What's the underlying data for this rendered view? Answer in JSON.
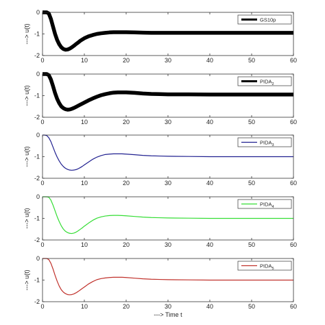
{
  "chart_data": [
    {
      "type": "line",
      "ylabel": "---> u(t)",
      "xlabel": "",
      "xlim": [
        0,
        60
      ],
      "ylim": [
        -2,
        0
      ],
      "xticks": [
        0,
        10,
        20,
        30,
        40,
        50,
        60
      ],
      "yticks": [
        0,
        -1,
        -2
      ],
      "grid": false,
      "legend_position": "top-right",
      "series": [
        {
          "name": "GS10p",
          "name_sub": "",
          "color": "#000000",
          "noisy": true,
          "x": [
            0,
            0.5,
            1,
            1.5,
            2,
            2.5,
            3,
            3.5,
            4,
            4.5,
            5,
            5.5,
            6,
            6.5,
            7,
            7.5,
            8,
            8.5,
            9,
            9.5,
            10,
            11,
            12,
            13,
            14,
            15,
            16,
            17,
            18,
            19,
            20,
            22,
            24,
            26,
            28,
            30,
            35,
            40,
            45,
            50,
            55,
            60
          ],
          "y": [
            0,
            0,
            0,
            -0.05,
            -0.3,
            -0.65,
            -1.0,
            -1.28,
            -1.48,
            -1.62,
            -1.7,
            -1.73,
            -1.72,
            -1.68,
            -1.62,
            -1.55,
            -1.47,
            -1.4,
            -1.32,
            -1.26,
            -1.2,
            -1.11,
            -1.05,
            -1.0,
            -0.97,
            -0.95,
            -0.93,
            -0.92,
            -0.92,
            -0.92,
            -0.92,
            -0.93,
            -0.94,
            -0.95,
            -0.95,
            -0.95,
            -0.95,
            -0.95,
            -0.95,
            -0.95,
            -0.95,
            -0.95
          ]
        }
      ]
    },
    {
      "type": "line",
      "ylabel": "---> u(t)",
      "xlabel": "",
      "xlim": [
        0,
        60
      ],
      "ylim": [
        -2,
        0
      ],
      "xticks": [
        0,
        10,
        20,
        30,
        40,
        50,
        60
      ],
      "yticks": [
        0,
        -1,
        -2
      ],
      "grid": false,
      "legend_position": "top-right",
      "series": [
        {
          "name": "PIDA",
          "name_sub": "2",
          "color": "#000000",
          "noisy": true,
          "x": [
            0,
            0.5,
            1,
            1.5,
            2,
            2.5,
            3,
            3.5,
            4,
            4.5,
            5,
            5.5,
            6,
            6.5,
            7,
            7.5,
            8,
            8.5,
            9,
            9.5,
            10,
            11,
            12,
            13,
            14,
            15,
            16,
            17,
            18,
            19,
            20,
            22,
            24,
            26,
            28,
            30,
            35,
            40,
            45,
            50,
            55,
            60
          ],
          "y": [
            0,
            0,
            0,
            -0.05,
            -0.25,
            -0.55,
            -0.88,
            -1.15,
            -1.35,
            -1.5,
            -1.58,
            -1.63,
            -1.65,
            -1.64,
            -1.61,
            -1.57,
            -1.52,
            -1.47,
            -1.42,
            -1.37,
            -1.32,
            -1.22,
            -1.13,
            -1.05,
            -0.98,
            -0.93,
            -0.89,
            -0.86,
            -0.85,
            -0.85,
            -0.85,
            -0.87,
            -0.9,
            -0.92,
            -0.93,
            -0.94,
            -0.94,
            -0.95,
            -0.95,
            -0.95,
            -0.95,
            -0.95
          ]
        }
      ]
    },
    {
      "type": "line",
      "ylabel": "---> u(t)",
      "xlabel": "",
      "xlim": [
        0,
        60
      ],
      "ylim": [
        -2,
        0
      ],
      "xticks": [
        0,
        10,
        20,
        30,
        40,
        50,
        60
      ],
      "yticks": [
        0,
        -1,
        -2
      ],
      "grid": false,
      "legend_position": "top-right",
      "series": [
        {
          "name": "PIDA",
          "name_sub": "3",
          "color": "#1f1f8f",
          "noisy": false,
          "x": [
            0,
            0.5,
            1,
            1.5,
            2,
            2.5,
            3,
            3.5,
            4,
            4.5,
            5,
            5.5,
            6,
            6.5,
            7,
            7.5,
            8,
            8.5,
            9,
            9.5,
            10,
            11,
            12,
            13,
            14,
            15,
            16,
            17,
            18,
            19,
            20,
            22,
            24,
            26,
            28,
            30,
            35,
            40,
            45,
            50,
            55,
            60
          ],
          "y": [
            0,
            0,
            -0.02,
            -0.12,
            -0.3,
            -0.55,
            -0.8,
            -1.02,
            -1.2,
            -1.35,
            -1.46,
            -1.54,
            -1.59,
            -1.62,
            -1.63,
            -1.62,
            -1.6,
            -1.56,
            -1.51,
            -1.45,
            -1.38,
            -1.25,
            -1.12,
            -1.02,
            -0.95,
            -0.9,
            -0.88,
            -0.87,
            -0.87,
            -0.87,
            -0.88,
            -0.91,
            -0.94,
            -0.96,
            -0.97,
            -0.98,
            -0.99,
            -1.0,
            -1.0,
            -1.0,
            -1.0,
            -1.0
          ]
        }
      ]
    },
    {
      "type": "line",
      "ylabel": "---> u(t)",
      "xlabel": "",
      "xlim": [
        0,
        60
      ],
      "ylim": [
        -2,
        0
      ],
      "xticks": [
        0,
        10,
        20,
        30,
        40,
        50,
        60
      ],
      "yticks": [
        0,
        -1,
        -2
      ],
      "grid": false,
      "legend_position": "top-right",
      "series": [
        {
          "name": "PIDA",
          "name_sub": "4",
          "color": "#33dd33",
          "noisy": false,
          "x": [
            0,
            0.5,
            1,
            1.5,
            2,
            2.5,
            3,
            3.5,
            4,
            4.5,
            5,
            5.5,
            6,
            6.5,
            7,
            7.5,
            8,
            8.5,
            9,
            9.5,
            10,
            11,
            12,
            13,
            14,
            15,
            16,
            17,
            18,
            19,
            20,
            22,
            24,
            26,
            28,
            30,
            35,
            40,
            45,
            50,
            55,
            60
          ],
          "y": [
            0,
            0,
            0,
            -0.02,
            -0.15,
            -0.38,
            -0.65,
            -0.92,
            -1.15,
            -1.35,
            -1.5,
            -1.6,
            -1.66,
            -1.69,
            -1.7,
            -1.68,
            -1.64,
            -1.58,
            -1.51,
            -1.44,
            -1.36,
            -1.22,
            -1.09,
            -0.99,
            -0.93,
            -0.89,
            -0.87,
            -0.86,
            -0.86,
            -0.87,
            -0.88,
            -0.91,
            -0.94,
            -0.96,
            -0.97,
            -0.98,
            -0.99,
            -1.0,
            -1.0,
            -1.0,
            -1.0,
            -1.0
          ]
        }
      ]
    },
    {
      "type": "line",
      "ylabel": "---> u(t)",
      "xlabel": "---> Time t",
      "xlim": [
        0,
        60
      ],
      "ylim": [
        -2,
        0
      ],
      "xticks": [
        0,
        10,
        20,
        30,
        40,
        50,
        60
      ],
      "yticks": [
        0,
        -1,
        -2
      ],
      "grid": false,
      "legend_position": "top-right",
      "series": [
        {
          "name": "PIDA",
          "name_sub": "5",
          "color": "#c0302a",
          "noisy": false,
          "x": [
            0,
            0.5,
            1,
            1.5,
            2,
            2.5,
            3,
            3.5,
            4,
            4.5,
            5,
            5.5,
            6,
            6.5,
            7,
            7.5,
            8,
            8.5,
            9,
            9.5,
            10,
            11,
            12,
            13,
            14,
            15,
            16,
            17,
            18,
            19,
            20,
            22,
            24,
            26,
            28,
            30,
            35,
            40,
            45,
            50,
            55,
            60
          ],
          "y": [
            0,
            0,
            0,
            -0.05,
            -0.22,
            -0.48,
            -0.78,
            -1.05,
            -1.28,
            -1.45,
            -1.56,
            -1.63,
            -1.67,
            -1.68,
            -1.67,
            -1.64,
            -1.59,
            -1.53,
            -1.46,
            -1.39,
            -1.32,
            -1.18,
            -1.07,
            -0.98,
            -0.93,
            -0.9,
            -0.88,
            -0.87,
            -0.87,
            -0.87,
            -0.88,
            -0.91,
            -0.94,
            -0.96,
            -0.97,
            -0.98,
            -0.99,
            -1.0,
            -1.0,
            -1.0,
            -1.0,
            -1.0
          ]
        }
      ]
    }
  ]
}
